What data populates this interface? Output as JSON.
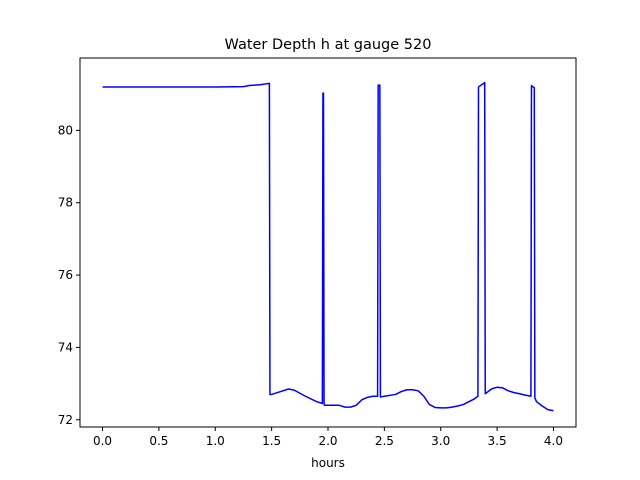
{
  "chart_data": {
    "type": "line",
    "title": "Water Depth h at gauge 520",
    "xlabel": "hours",
    "ylabel": "",
    "xlim": [
      -0.2,
      4.2
    ],
    "ylim": [
      71.8,
      82.0
    ],
    "xticks": [
      0.0,
      0.5,
      1.0,
      1.5,
      2.0,
      2.5,
      3.0,
      3.5,
      4.0
    ],
    "xtick_labels": [
      "0.0",
      "0.5",
      "1.0",
      "1.5",
      "2.0",
      "2.5",
      "3.0",
      "3.5",
      "4.0"
    ],
    "yticks": [
      72,
      74,
      76,
      78,
      80
    ],
    "ytick_labels": [
      "72",
      "74",
      "76",
      "78",
      "80"
    ],
    "grid": false,
    "colors": {
      "line": "#0000ff",
      "axes": "#000000",
      "background": "#ffffff"
    },
    "series": [
      {
        "x": [
          0.0,
          0.5,
          1.0,
          1.25,
          1.3,
          1.4,
          1.48,
          1.485,
          1.5,
          1.6,
          1.65,
          1.7,
          1.8,
          1.9,
          1.95,
          1.955,
          1.96,
          1.965,
          1.97,
          2.0,
          2.05,
          2.1,
          2.15,
          2.2,
          2.25,
          2.3,
          2.35,
          2.4,
          2.44,
          2.445,
          2.46,
          2.465,
          2.5,
          2.6,
          2.65,
          2.7,
          2.75,
          2.8,
          2.85,
          2.9,
          2.95,
          3.0,
          3.05,
          3.1,
          3.15,
          3.2,
          3.25,
          3.3,
          3.33,
          3.335,
          3.39,
          3.395,
          3.45,
          3.5,
          3.55,
          3.6,
          3.65,
          3.7,
          3.75,
          3.8,
          3.805,
          3.81,
          3.83,
          3.835,
          3.85,
          3.9,
          3.95,
          4.0
        ],
        "values": [
          81.2,
          81.2,
          81.2,
          81.21,
          81.24,
          81.26,
          81.3,
          72.7,
          72.7,
          72.8,
          72.85,
          72.82,
          72.65,
          72.5,
          72.45,
          81.03,
          81.03,
          72.42,
          72.4,
          72.4,
          72.4,
          72.4,
          72.35,
          72.35,
          72.4,
          72.55,
          72.62,
          72.65,
          72.65,
          81.25,
          81.25,
          72.63,
          72.65,
          72.7,
          72.78,
          72.83,
          72.83,
          72.8,
          72.65,
          72.42,
          72.34,
          72.33,
          72.33,
          72.35,
          72.38,
          72.42,
          72.5,
          72.58,
          72.65,
          81.2,
          81.32,
          72.72,
          72.85,
          72.9,
          72.88,
          72.8,
          72.75,
          72.72,
          72.68,
          72.65,
          81.24,
          81.22,
          81.18,
          72.6,
          72.5,
          72.38,
          72.28,
          72.25
        ]
      }
    ]
  }
}
